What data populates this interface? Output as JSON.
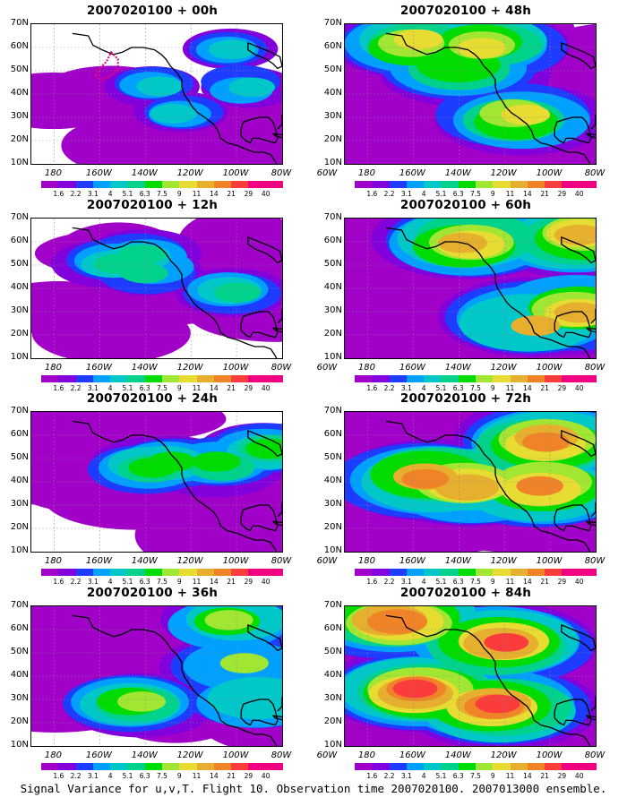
{
  "panels": [
    {
      "title": "2007020100 + 00h",
      "lead_hours": 0,
      "column": "left",
      "row": 1
    },
    {
      "title": "2007020100 + 48h",
      "lead_hours": 48,
      "column": "right",
      "row": 1
    },
    {
      "title": "2007020100 + 12h",
      "lead_hours": 12,
      "column": "left",
      "row": 2
    },
    {
      "title": "2007020100 + 60h",
      "lead_hours": 60,
      "column": "right",
      "row": 2
    },
    {
      "title": "2007020100 + 24h",
      "lead_hours": 24,
      "column": "left",
      "row": 3
    },
    {
      "title": "2007020100 + 72h",
      "lead_hours": 72,
      "column": "right",
      "row": 3
    },
    {
      "title": "2007020100 + 36h",
      "lead_hours": 36,
      "column": "left",
      "row": 4
    },
    {
      "title": "2007020100 + 84h",
      "lead_hours": 84,
      "column": "right",
      "row": 4
    }
  ],
  "lat_labels": [
    "70N",
    "60N",
    "50N",
    "40N",
    "30N",
    "20N",
    "10N"
  ],
  "lon_labels": [
    "180",
    "160W",
    "140W",
    "120W",
    "100W",
    "80W",
    "60W"
  ],
  "colorbar": {
    "labels": [
      "1.6",
      "2.2",
      "3.1",
      "4",
      "5.1",
      "6.3",
      "7.5",
      "9",
      "11",
      "14",
      "21",
      "29",
      "40"
    ],
    "colors": [
      "#a000c8",
      "#8200dc",
      "#1e3cff",
      "#00a0ff",
      "#00c8c8",
      "#00d28c",
      "#00dc00",
      "#a0e632",
      "#e6dc32",
      "#e6af2d",
      "#f08228",
      "#fa3c3c",
      "#f00082"
    ]
  },
  "caption": "Signal Variance for u,v,T. Flight 10. Observation time 2007020100. 2007013000 ensemble."
}
